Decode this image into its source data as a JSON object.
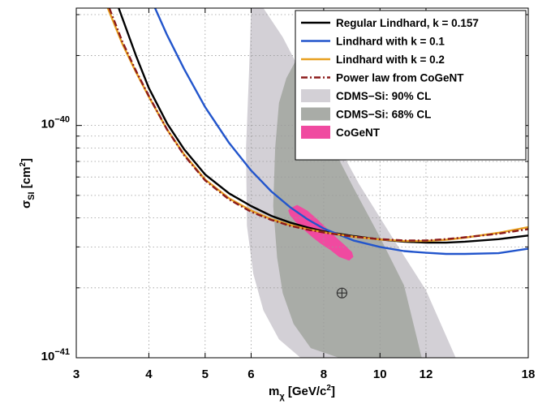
{
  "chart_data": {
    "type": "line",
    "xlabel_main": "m",
    "xlabel_sub": "χ",
    "xlabel_unit": "[GeV/c",
    "xlabel_unit_sup": "2",
    "xlabel_unit_end": "]",
    "ylabel_main": "σ",
    "ylabel_sub": "SI",
    "ylabel_unit": "[cm",
    "ylabel_unit_sup": "2",
    "ylabel_unit_end": "]",
    "x_scale": "log",
    "y_scale": "log",
    "xlim": [
      3,
      18
    ],
    "ylim": [
      1e-41,
      3.2e-40
    ],
    "grid": true,
    "legend_position": "top-right",
    "x_ticks": [
      {
        "value": 3,
        "label": "3"
      },
      {
        "value": 4,
        "label": "4"
      },
      {
        "value": 5,
        "label": "5"
      },
      {
        "value": 6,
        "label": "6"
      },
      {
        "value": 8,
        "label": "8"
      },
      {
        "value": 10,
        "label": "10"
      },
      {
        "value": 12,
        "label": "12"
      },
      {
        "value": 18,
        "label": "18"
      }
    ],
    "y_ticks": [
      {
        "value": 1e-41,
        "base": "10",
        "exp": "−41"
      },
      {
        "value": 1e-40,
        "base": "10",
        "exp": "−40"
      }
    ],
    "series": [
      {
        "name": "Regular Lindhard, k = 0.157",
        "color": "#000000",
        "style": "solid",
        "x": [
          3.55,
          3.8,
          4.0,
          4.3,
          4.6,
          5.0,
          5.5,
          6.0,
          6.5,
          7.0,
          7.5,
          8.0,
          9.0,
          10.0,
          11.0,
          12.0,
          13.0,
          14.0,
          16.0,
          18.0
        ],
        "y": [
          3.2e-40,
          2e-40,
          1.45e-40,
          1.02e-40,
          7.9e-41,
          6.15e-41,
          5.1e-41,
          4.5e-41,
          4.08e-41,
          3.82e-41,
          3.64e-41,
          3.5e-41,
          3.34e-41,
          3.23e-41,
          3.16e-41,
          3.13e-41,
          3.13e-41,
          3.16e-41,
          3.24e-41,
          3.36e-41
        ]
      },
      {
        "name": "Lindhard with k = 0.1",
        "color": "#2255cc",
        "style": "solid",
        "x": [
          4.1,
          4.3,
          4.6,
          5.0,
          5.5,
          6.0,
          6.5,
          7.0,
          7.5,
          8.0,
          9.0,
          10.0,
          11.0,
          12.0,
          13.0,
          14.0,
          16.0,
          18.0
        ],
        "y": [
          3.2e-40,
          2.45e-40,
          1.75e-40,
          1.2e-40,
          8.4e-41,
          6.4e-41,
          5.2e-41,
          4.45e-41,
          3.95e-41,
          3.6e-41,
          3.2e-41,
          3e-41,
          2.88e-41,
          2.83e-41,
          2.8e-41,
          2.8e-41,
          2.82e-41,
          2.95e-41
        ]
      },
      {
        "name": "Lindhard with k = 0.2",
        "color": "#e8a020",
        "style": "solid",
        "x": [
          3.4,
          3.6,
          3.8,
          4.0,
          4.3,
          4.6,
          5.0,
          5.5,
          6.0,
          6.5,
          7.0,
          7.5,
          8.0,
          9.0,
          10.0,
          11.0,
          12.0,
          13.0,
          14.0,
          16.0,
          18.0
        ],
        "y": [
          3.2e-40,
          2.25e-40,
          1.7e-40,
          1.33e-40,
          9.6e-41,
          7.5e-41,
          5.85e-41,
          4.85e-41,
          4.3e-41,
          3.95e-41,
          3.73e-41,
          3.58e-41,
          3.47e-41,
          3.32e-41,
          3.23e-41,
          3.18e-41,
          3.18e-41,
          3.22e-41,
          3.29e-41,
          3.45e-41,
          3.65e-41
        ]
      },
      {
        "name": "Power law from CoGeNT",
        "color": "#8b1a1a",
        "style": "dashdot",
        "x": [
          3.42,
          3.6,
          3.8,
          4.0,
          4.3,
          4.6,
          5.0,
          5.5,
          6.0,
          6.5,
          7.0,
          7.5,
          8.0,
          9.0,
          10.0,
          11.0,
          12.0,
          13.0,
          14.0,
          16.0,
          18.0
        ],
        "y": [
          3.2e-40,
          2.3e-40,
          1.72e-40,
          1.34e-40,
          9.6e-41,
          7.45e-41,
          5.8e-41,
          4.8e-41,
          4.25e-41,
          3.92e-41,
          3.7e-41,
          3.56e-41,
          3.46e-41,
          3.32e-41,
          3.24e-41,
          3.2e-41,
          3.2e-41,
          3.24e-41,
          3.3e-41,
          3.42e-41,
          3.58e-41
        ]
      }
    ],
    "regions": [
      {
        "name": "CDMS−Si: 90% CL",
        "color": "#d3d0d6",
        "x": [
          6.0,
          6.3,
          6.8,
          7.5,
          8.3,
          9.2,
          10.5,
          12.0,
          13.5,
          12.0,
          10.5,
          9.2,
          8.2,
          7.3,
          6.7,
          6.3,
          6.05,
          5.9,
          5.88,
          5.95,
          6.0
        ],
        "y": [
          3.2e-40,
          3.2e-40,
          2.4e-40,
          1.5e-40,
          9e-41,
          5.6e-41,
          3.3e-41,
          1.95e-41,
          1e-41,
          1e-41,
          1e-41,
          1e-41,
          1e-41,
          1e-41,
          1.2e-41,
          1.6e-41,
          2.3e-41,
          3.7e-41,
          8e-41,
          1.7e-40,
          3.2e-40
        ]
      },
      {
        "name": "CDMS−Si: 68% CL",
        "color": "#a9aca7",
        "x": [
          6.9,
          7.2,
          7.7,
          8.3,
          9.0,
          10.0,
          11.0,
          11.8,
          10.7,
          9.5,
          8.5,
          7.6,
          7.1,
          6.8,
          6.65,
          6.55,
          6.6,
          6.7,
          6.9
        ],
        "y": [
          1.6e-40,
          1.95e-40,
          1.25e-40,
          8e-41,
          5.4e-41,
          3.3e-41,
          2.05e-41,
          1e-41,
          1e-41,
          1e-41,
          1e-41,
          1.1e-41,
          1.4e-41,
          1.9e-41,
          2.7e-41,
          4.5e-41,
          8e-41,
          1.25e-40,
          1.6e-40
        ]
      },
      {
        "name": "CoGeNT",
        "color": "#f04aa0",
        "x": [
          7.0,
          7.2,
          7.5,
          7.8,
          8.1,
          8.4,
          8.7,
          8.95,
          9.0,
          8.85,
          8.5,
          8.2,
          7.9,
          7.65,
          7.4,
          7.15,
          7.0,
          6.95,
          7.0
        ],
        "y": [
          4.4e-41,
          4.55e-41,
          4.3e-41,
          3.95e-41,
          3.6e-41,
          3.3e-41,
          3.05e-41,
          2.85e-41,
          2.72e-41,
          2.62e-41,
          2.72e-41,
          2.92e-41,
          3.1e-41,
          3.3e-41,
          3.55e-41,
          3.85e-41,
          4.1e-41,
          4.3e-41,
          4.4e-41
        ]
      }
    ],
    "marker": {
      "symbol": "circled-plus",
      "x": 8.6,
      "y": 1.9e-41
    }
  }
}
